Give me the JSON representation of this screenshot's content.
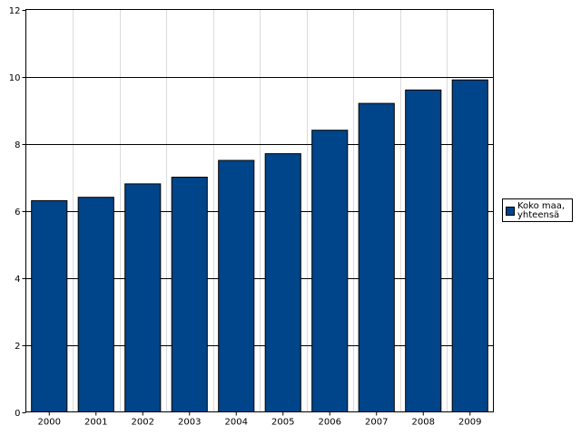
{
  "chart_data": {
    "type": "bar",
    "title": "",
    "xlabel": "",
    "ylabel": "",
    "categories": [
      "2000",
      "2001",
      "2002",
      "2003",
      "2004",
      "2005",
      "2006",
      "2007",
      "2008",
      "2009"
    ],
    "series": [
      {
        "name": "Koko maa,\nyhteensä",
        "color": "#004489",
        "values": [
          6.3,
          6.4,
          6.8,
          7.0,
          7.5,
          7.7,
          8.4,
          9.2,
          9.6,
          9.9
        ]
      }
    ],
    "ylim": [
      0,
      12
    ],
    "yticks": [
      "0",
      "2",
      "4",
      "6",
      "8",
      "10",
      "12"
    ],
    "grid": "horizontal",
    "legend_position": "right"
  },
  "legend": {
    "label": "Koko maa,\nyhteensä",
    "color": "#004489"
  }
}
